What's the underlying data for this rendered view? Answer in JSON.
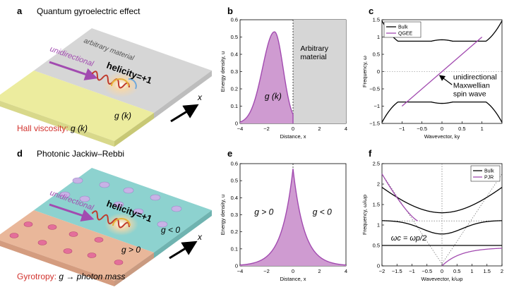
{
  "panels": {
    "a": {
      "letter": "a",
      "title": "Quantum gyroelectric effect",
      "material": "arbitrary material",
      "arrow_label": "unidirectional",
      "helicity": "helicity=+1",
      "g": "g (k)",
      "axis": "x",
      "caption_red": "Hall viscosity:",
      "caption_black": " g (k)"
    },
    "d": {
      "letter": "d",
      "title": "Photonic Jackiw–Rebbi",
      "arrow_label": "unidirectional",
      "helicity": "helicity=+1",
      "g_neg": "g < 0",
      "g_pos": "g > 0",
      "axis": "x",
      "caption_red": "Gyrotropy:",
      "caption_black": " g → photon mass"
    }
  },
  "colors": {
    "purple": "#a24bb0",
    "purple_fill": "#cf9bd1",
    "yellow": "#ecec9e",
    "gray": "#d6d6d6",
    "teal": "#8dd2cf",
    "peach": "#e9b79a",
    "red_caption": "#d2322d",
    "wave_red": "#c0392b"
  },
  "chart_data": [
    {
      "panel": "b",
      "type": "area",
      "letter": "b",
      "ylabel": "Energy density, u",
      "xlabel": "Distance, x",
      "xlim": [
        -4,
        4
      ],
      "ylim": [
        0,
        0.6
      ],
      "xticks": [
        "-4",
        "-2",
        "0",
        "2",
        "4"
      ],
      "yticks": [
        "0",
        "0.1",
        "0.2",
        "0.3",
        "0.4",
        "0.5",
        "0.6"
      ],
      "shade_from": 0,
      "shade_label": "Arbitrary\nmaterial",
      "area_label": "g (k)",
      "peak": {
        "x": -1.4,
        "y": 0.53,
        "sigma_left": 0.9,
        "sigma_right": 0.65,
        "cutoff": 0
      }
    },
    {
      "panel": "c",
      "type": "line",
      "letter": "c",
      "ylabel": "Frequency, ω",
      "xlabel": "Wavevector, ky",
      "xlim": [
        -1.5,
        1.5
      ],
      "ylim": [
        -1.5,
        1.5
      ],
      "xticks": [
        "-1",
        "-0.5",
        "0",
        "0.5",
        "1"
      ],
      "yticks": [
        "-1.5",
        "-1",
        "-0.5",
        "0",
        "0.5",
        "1",
        "1.5"
      ],
      "legend": [
        "Bulk",
        "QGEE"
      ],
      "annotation": "unidirectional\nMaxwellian\nspin wave",
      "qgee": {
        "x": [
          -1,
          1
        ],
        "y": [
          -1,
          1
        ]
      },
      "bulk_params": {
        "k0": 0.55,
        "a": 0.15,
        "b": 0.22,
        "w_edge": 1.35,
        "w_center": 0.95
      }
    },
    {
      "panel": "e",
      "type": "area",
      "letter": "e",
      "ylabel": "Energy density, u",
      "xlabel": "Distance, x",
      "xlim": [
        -4,
        4
      ],
      "ylim": [
        0,
        0.6
      ],
      "xticks": [
        "-4",
        "-2",
        "0",
        "2",
        "4"
      ],
      "yticks": [
        "0",
        "0.1",
        "0.2",
        "0.3",
        "0.4",
        "0.5",
        "0.6"
      ],
      "left_label": "g > 0",
      "right_label": "g < 0",
      "peak": {
        "x": 0,
        "y": 0.57,
        "decay": 0.85
      }
    },
    {
      "panel": "f",
      "type": "line",
      "letter": "f",
      "ylabel": "Frequency, ω/ωp",
      "xlabel": "Wavevector, k/ωp",
      "xlim": [
        -2,
        2
      ],
      "ylim": [
        0,
        2.5
      ],
      "xticks": [
        "-2",
        "-1.5",
        "-1",
        "-0.5",
        "0",
        "0.5",
        "1",
        "1.5",
        "2"
      ],
      "yticks": [
        "0",
        "0.5",
        "1",
        "1.5",
        "2",
        "2.5"
      ],
      "legend": [
        "Bulk",
        "PJR"
      ],
      "annotation": "ωc = ωp/2",
      "omega_c": 0.5
    }
  ]
}
